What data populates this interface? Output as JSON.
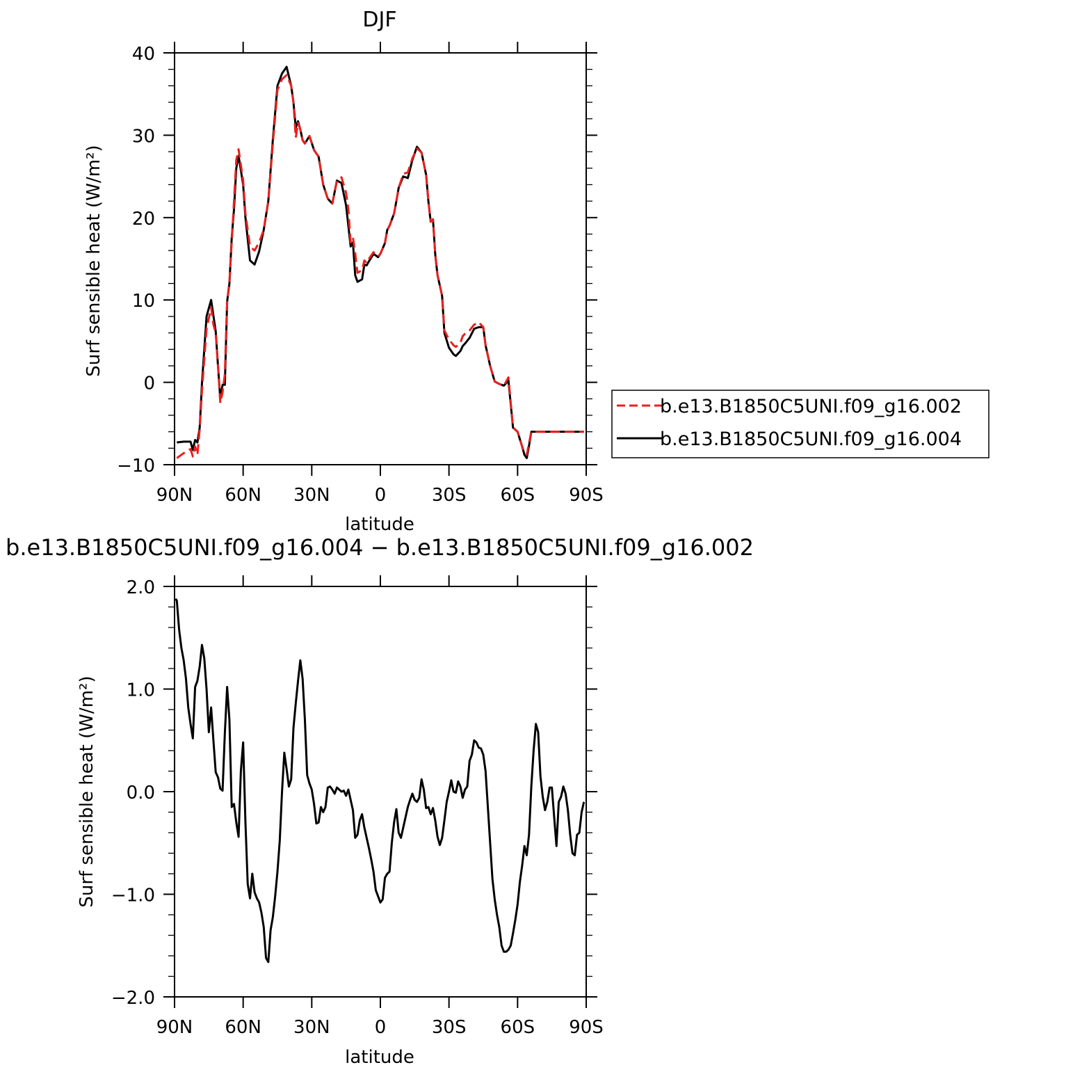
{
  "chart_data": [
    {
      "type": "line",
      "title": "DJF",
      "xlabel": "latitude",
      "ylabel": "Surf sensible heat (W/m²)",
      "xlim": [
        90,
        -90
      ],
      "ylim": [
        -10,
        40
      ],
      "x_ticks": [
        {
          "value": 90,
          "label": "90N"
        },
        {
          "value": 60,
          "label": "60N"
        },
        {
          "value": 30,
          "label": "30N"
        },
        {
          "value": 0,
          "label": "0"
        },
        {
          "value": -30,
          "label": "30S"
        },
        {
          "value": -60,
          "label": "60S"
        },
        {
          "value": -90,
          "label": "90S"
        }
      ],
      "y_ticks": [
        {
          "value": 40,
          "label": "40"
        },
        {
          "value": 30,
          "label": "30"
        },
        {
          "value": 20,
          "label": "20"
        },
        {
          "value": 10,
          "label": "10"
        },
        {
          "value": 0,
          "label": "0"
        },
        {
          "value": -10,
          "label": "−10"
        }
      ],
      "legend": "right",
      "series": [
        {
          "name": "b.e13.B1850C5UNI.f09_g16.002",
          "color": "#e8201e",
          "dash": "dashed",
          "x": [
            89,
            86,
            83,
            82,
            81,
            80,
            79,
            78,
            76,
            74,
            73,
            72,
            71,
            70,
            69,
            68,
            67,
            66,
            65,
            64,
            63,
            62,
            60,
            59,
            57,
            55,
            53,
            51,
            49,
            47,
            45,
            43,
            41,
            39,
            38,
            37,
            36,
            35,
            34,
            33,
            31,
            29,
            27,
            26,
            25,
            23,
            21,
            19,
            17,
            15,
            14,
            13,
            12,
            11,
            10,
            8,
            7,
            6,
            5,
            3,
            1,
            0,
            -2,
            -3,
            -4,
            -6,
            -7,
            -8,
            -10,
            -12,
            -14,
            -16,
            -18,
            -20,
            -21,
            -22,
            -23,
            -24,
            -25,
            -27,
            -28,
            -30,
            -32,
            -33,
            -35,
            -36,
            -37,
            -39,
            -41,
            -43,
            -45,
            -46,
            -48,
            -50,
            -52,
            -54,
            -56,
            -58,
            -60,
            -62,
            -63,
            -64,
            -65,
            -66,
            -68,
            -70,
            -71,
            -72,
            -73,
            -74,
            -75,
            -76,
            -77,
            -78,
            -80,
            -82,
            -84,
            -85,
            -86,
            -88,
            -89
          ],
          "y": [
            -9.2,
            -8.6,
            -8.1,
            -9.0,
            -7.8,
            -8.8,
            -5.7,
            -1.0,
            6.5,
            9.1,
            7.0,
            6.0,
            2.0,
            -2.5,
            -1.2,
            1.0,
            9.8,
            12.2,
            17.0,
            22.0,
            27.0,
            28.3,
            24.5,
            20.5,
            16.5,
            16.0,
            17.0,
            18.5,
            22.0,
            29.0,
            35.5,
            36.8,
            37.3,
            36.0,
            34.0,
            29.7,
            31.5,
            30.7,
            29.4,
            29.0,
            29.9,
            28.2,
            27.4,
            25.7,
            24.0,
            22.3,
            21.7,
            24.5,
            24.9,
            23.0,
            21.0,
            17.0,
            17.6,
            15.7,
            13.3,
            13.6,
            14.8,
            14.5,
            15.0,
            15.8,
            15.3,
            15.6,
            16.9,
            18.5,
            19.0,
            20.5,
            22.0,
            23.6,
            25.3,
            25.5,
            27.2,
            28.4,
            27.9,
            25.2,
            22.0,
            19.5,
            19.8,
            15.5,
            13.0,
            10.5,
            6.3,
            5.2,
            4.5,
            4.3,
            4.8,
            5.6,
            5.9,
            6.3,
            7.0,
            7.3,
            6.7,
            4.5,
            2.0,
            0.1,
            -0.2,
            -0.4,
            0.6,
            -5.5,
            -6.0,
            -7.8,
            -8.6,
            -8.8,
            -7.4,
            -6.0,
            -6.0,
            -6.0,
            -6.0,
            -6.0,
            -6.0,
            -6.0,
            -6.0,
            -6.0,
            -6.0,
            -6.0,
            -6.0,
            -6.0,
            -6.0,
            -6.0,
            -6.0,
            -6.0,
            -6.0
          ]
        },
        {
          "name": "b.e13.B1850C5UNI.f09_g16.004",
          "color": "#000000",
          "dash": "solid",
          "x": [
            89,
            86,
            83,
            82,
            81,
            80,
            79,
            78,
            76,
            74,
            73,
            72,
            71,
            70,
            69,
            68,
            67,
            66,
            65,
            64,
            63,
            62,
            60,
            59,
            57,
            55,
            53,
            51,
            49,
            47,
            45,
            43,
            41,
            39,
            38,
            37,
            36,
            35,
            34,
            33,
            31,
            29,
            27,
            26,
            25,
            23,
            21,
            19,
            17,
            15,
            14,
            13,
            12,
            11,
            10,
            8,
            7,
            6,
            5,
            3,
            1,
            0,
            -2,
            -3,
            -4,
            -6,
            -7,
            -8,
            -10,
            -12,
            -14,
            -16,
            -18,
            -20,
            -21,
            -22,
            -23,
            -24,
            -25,
            -27,
            -28,
            -30,
            -32,
            -33,
            -35,
            -36,
            -37,
            -39,
            -41,
            -43,
            -45,
            -46,
            -48,
            -50,
            -52,
            -54,
            -56,
            -58,
            -60,
            -62,
            -63,
            -64,
            -65,
            -66,
            -68,
            -70,
            -71,
            -72,
            -73,
            -74,
            -75,
            -76,
            -77,
            -78,
            -80,
            -82,
            -84,
            -85,
            -86,
            -88,
            -89
          ],
          "y": [
            -7.3,
            -7.2,
            -7.2,
            -8.2,
            -7.0,
            -7.3,
            -5.5,
            -0.1,
            8.0,
            10.0,
            8.1,
            6.2,
            2.0,
            -2.0,
            -0.3,
            -0.3,
            9.8,
            12.0,
            17.5,
            21.0,
            26.0,
            27.5,
            24.0,
            20.0,
            14.8,
            14.3,
            15.9,
            18.5,
            22.0,
            29.5,
            36.0,
            37.5,
            38.3,
            36.0,
            34.0,
            30.9,
            31.7,
            30.7,
            29.4,
            29.0,
            29.9,
            28.2,
            27.4,
            25.7,
            24.0,
            22.3,
            21.7,
            24.5,
            24.2,
            21.5,
            19.0,
            16.5,
            17.0,
            13.0,
            12.2,
            12.5,
            14.3,
            14.2,
            14.7,
            15.6,
            15.2,
            15.6,
            16.9,
            18.5,
            19.0,
            20.5,
            22.0,
            23.6,
            25.0,
            24.8,
            27.0,
            28.6,
            27.9,
            25.2,
            22.0,
            19.5,
            19.8,
            15.5,
            13.0,
            10.5,
            6.0,
            4.2,
            3.4,
            3.2,
            3.8,
            4.4,
            4.7,
            5.4,
            6.5,
            6.7,
            6.7,
            4.5,
            2.0,
            0.1,
            -0.2,
            -0.4,
            0.2,
            -5.5,
            -6.0,
            -7.8,
            -8.8,
            -9.2,
            -7.7,
            -6.0,
            -6.0,
            -6.0,
            -6.0,
            -6.0,
            -6.0,
            -6.0,
            -6.0,
            -6.0,
            -6.0,
            -6.0,
            -6.0,
            -6.0,
            -6.0,
            -6.0,
            -6.0,
            -6.0,
            -6.0
          ]
        }
      ]
    },
    {
      "type": "line",
      "title": "b.e13.B1850C5UNI.f09_g16.004 − b.e13.B1850C5UNI.f09_g16.002",
      "xlabel": "latitude",
      "ylabel": "Surf sensible heat (W/m²)",
      "xlim": [
        90,
        -90
      ],
      "ylim": [
        -2.0,
        2.0
      ],
      "x_ticks": [
        {
          "value": 90,
          "label": "90N"
        },
        {
          "value": 60,
          "label": "60N"
        },
        {
          "value": 30,
          "label": "30N"
        },
        {
          "value": 0,
          "label": "0"
        },
        {
          "value": -30,
          "label": "30S"
        },
        {
          "value": -60,
          "label": "60S"
        },
        {
          "value": -90,
          "label": "90S"
        }
      ],
      "y_ticks": [
        {
          "value": 2.0,
          "label": "2.0"
        },
        {
          "value": 1.0,
          "label": "1.0"
        },
        {
          "value": 0.0,
          "label": "0.0"
        },
        {
          "value": -1.0,
          "label": "−1.0"
        },
        {
          "value": -2.0,
          "label": "−2.0"
        }
      ],
      "series": [
        {
          "color": "#000000",
          "dash": "solid",
          "x": [
            89.5,
            89,
            88,
            87,
            86,
            85,
            84,
            83,
            82,
            81,
            80,
            79,
            78,
            77,
            76,
            75,
            74,
            73,
            72,
            71,
            70,
            69,
            68,
            67,
            66,
            65,
            64,
            63,
            62,
            61,
            60,
            59,
            58,
            57,
            56,
            55,
            54,
            53,
            52,
            51,
            50,
            49,
            48,
            47,
            46,
            45,
            44,
            43,
            42,
            41,
            40,
            39,
            38,
            37,
            36,
            35,
            34,
            33,
            32,
            31,
            30,
            29,
            28,
            27,
            26,
            25,
            24,
            23,
            22,
            21,
            20,
            19,
            18,
            17,
            16,
            15,
            14,
            13,
            12,
            11,
            10,
            9,
            8,
            7,
            6,
            5,
            4,
            3,
            2,
            1,
            0,
            -1,
            -2,
            -3,
            -4,
            -5,
            -6,
            -7,
            -8,
            -9,
            -10,
            -11,
            -12,
            -13,
            -14,
            -15,
            -16,
            -17,
            -18,
            -19,
            -20,
            -21,
            -22,
            -23,
            -24,
            -25,
            -26,
            -27,
            -28,
            -29,
            -30,
            -31,
            -32,
            -33,
            -34,
            -35,
            -36,
            -37,
            -38,
            -39,
            -40,
            -41,
            -42,
            -43,
            -44,
            -45,
            -46,
            -47,
            -48,
            -49,
            -50,
            -51,
            -52,
            -53,
            -54,
            -55,
            -56,
            -57,
            -58,
            -59,
            -60,
            -61,
            -62,
            -63,
            -64,
            -65,
            -66,
            -67,
            -68,
            -69,
            -70,
            -71,
            -72,
            -73,
            -74,
            -75,
            -76,
            -77,
            -78,
            -79,
            -80,
            -81,
            -82,
            -83,
            -84,
            -85,
            -86,
            -87,
            -88,
            -89
          ],
          "y": [
            1.88,
            1.86,
            1.58,
            1.4,
            1.28,
            1.1,
            0.82,
            0.66,
            0.52,
            1.02,
            1.08,
            1.22,
            1.43,
            1.3,
            1.0,
            0.58,
            0.82,
            0.5,
            0.19,
            0.14,
            0.03,
            0.01,
            0.57,
            1.02,
            0.7,
            -0.15,
            -0.12,
            -0.3,
            -0.44,
            0.2,
            0.48,
            -0.3,
            -0.9,
            -1.04,
            -0.8,
            -0.98,
            -1.04,
            -1.08,
            -1.18,
            -1.32,
            -1.62,
            -1.66,
            -1.35,
            -1.22,
            -1.02,
            -0.78,
            -0.48,
            0.0,
            0.38,
            0.22,
            0.05,
            0.12,
            0.62,
            0.86,
            1.08,
            1.28,
            1.1,
            0.7,
            0.16,
            0.08,
            0.02,
            -0.12,
            -0.31,
            -0.3,
            -0.15,
            -0.2,
            -0.15,
            0.04,
            0.05,
            0.02,
            -0.02,
            0.04,
            0.02,
            0.0,
            0.01,
            -0.04,
            0.02,
            -0.08,
            -0.18,
            -0.45,
            -0.42,
            -0.28,
            -0.22,
            -0.35,
            -0.45,
            -0.55,
            -0.66,
            -0.78,
            -0.96,
            -1.02,
            -1.08,
            -1.05,
            -0.84,
            -0.8,
            -0.78,
            -0.5,
            -0.3,
            -0.17,
            -0.4,
            -0.45,
            -0.35,
            -0.25,
            -0.15,
            -0.08,
            -0.02,
            -0.08,
            -0.1,
            -0.06,
            0.12,
            0.02,
            -0.16,
            -0.15,
            -0.22,
            -0.16,
            -0.28,
            -0.44,
            -0.52,
            -0.45,
            -0.28,
            -0.1,
            0.0,
            0.11,
            0.0,
            -0.01,
            0.1,
            0.05,
            -0.06,
            0.02,
            0.05,
            0.3,
            0.36,
            0.5,
            0.48,
            0.43,
            0.42,
            0.36,
            0.2,
            -0.15,
            -0.5,
            -0.85,
            -1.05,
            -1.2,
            -1.32,
            -1.5,
            -1.56,
            -1.56,
            -1.54,
            -1.5,
            -1.38,
            -1.25,
            -1.1,
            -0.88,
            -0.72,
            -0.53,
            -0.62,
            -0.42,
            0.05,
            0.4,
            0.66,
            0.58,
            0.15,
            -0.05,
            -0.18,
            -0.1,
            0.04,
            0.04,
            -0.25,
            -0.53,
            -0.1,
            -0.05,
            0.05,
            -0.02,
            -0.18,
            -0.42,
            -0.6,
            -0.62,
            -0.42,
            -0.4,
            -0.2,
            -0.1
          ]
        }
      ]
    }
  ]
}
